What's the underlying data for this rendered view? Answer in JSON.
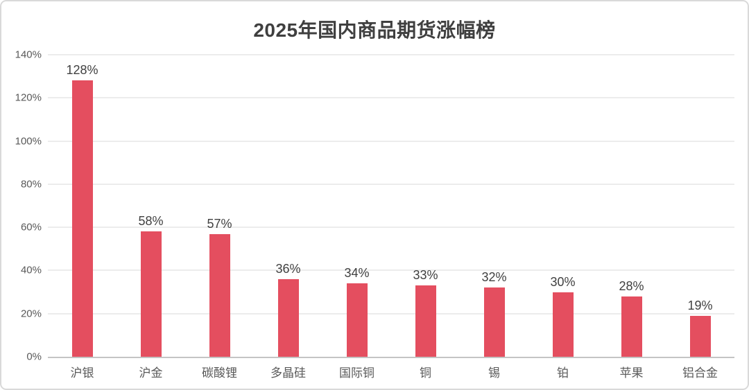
{
  "frame": {
    "background": "#ffffff",
    "border_color": "#d9d9d9"
  },
  "chart_data": {
    "type": "bar",
    "title": "2025年国内商品期货涨幅榜",
    "categories": [
      "沪银",
      "沪金",
      "碳酸锂",
      "多晶硅",
      "国际铜",
      "铜",
      "锡",
      "铂",
      "苹果",
      "铝合金"
    ],
    "values": [
      128,
      58,
      57,
      36,
      34,
      33,
      32,
      30,
      28,
      19
    ],
    "value_labels": [
      "128%",
      "58%",
      "57%",
      "36%",
      "34%",
      "33%",
      "32%",
      "30%",
      "28%",
      "19%"
    ],
    "xlabel": "",
    "ylabel": "",
    "ylim": [
      0,
      140
    ],
    "ytick_values": [
      0,
      20,
      40,
      60,
      80,
      100,
      120,
      140
    ],
    "ytick_labels": [
      "0%",
      "20%",
      "40%",
      "60%",
      "80%",
      "100%",
      "120%",
      "140%"
    ],
    "grid": true,
    "legend_position": "none",
    "colors": {
      "bar": "#e44e5f",
      "gridline": "#ececec",
      "axis_line": "#c4c4c4",
      "tick_label": "#595959",
      "value_label": "#404040",
      "title": "#3f3f3f"
    }
  }
}
